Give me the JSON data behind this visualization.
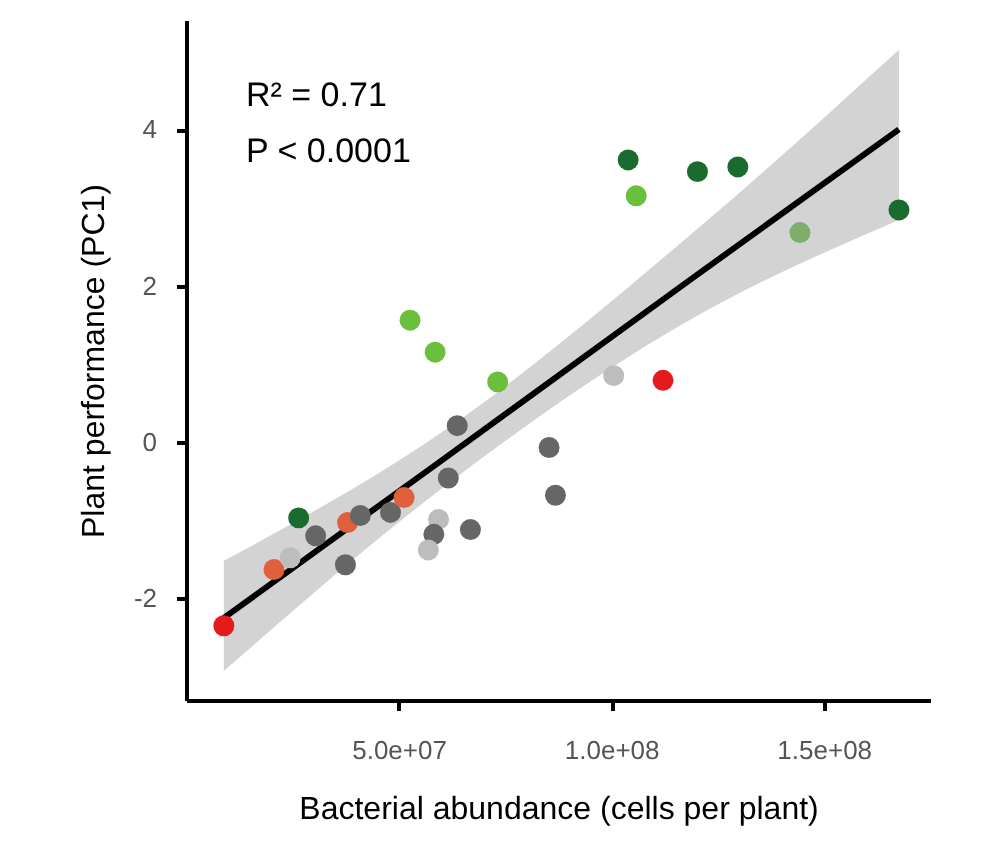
{
  "chart_data": {
    "type": "scatter",
    "xlabel": "Bacterial abundance (cells per plant)",
    "ylabel": "Plant performance (PC1)",
    "annotations": [
      "R² = 0.71",
      "P < 0.0001"
    ],
    "xlim": [
      0,
      175000000.0
    ],
    "xticks": [
      {
        "value": 50000000.0,
        "label": "5.0e+07"
      },
      {
        "value": 100000000.0,
        "label": "1.0e+08"
      },
      {
        "value": 150000000.0,
        "label": "1.5e+08"
      }
    ],
    "ylim": [
      -3.3,
      5.4
    ],
    "yticks": [
      -2,
      0,
      2,
      4
    ],
    "grid": false,
    "series": [
      {
        "type": "line",
        "color": "#000000",
        "x": [
          8900000.0,
          60000000.0,
          119700000.0,
          167700000.0
        ],
        "values": [
          -2.25,
          -0.24,
          2.12,
          4.0
        ],
        "lower": [
          -2.93,
          -0.6,
          1.6,
          2.84
        ],
        "upper": [
          -1.52,
          0.12,
          2.7,
          5.02
        ]
      },
      {
        "type": "scatter",
        "marker": "circle",
        "x": [
          8900000.0,
          20700000.0,
          24500000.0,
          26500000.0,
          30500000.0,
          38000000.0,
          37500000.0,
          41000000.0,
          48100000.0,
          51300000.0,
          52700000.0,
          58600000.0,
          61700000.0,
          63800000.0,
          59400000.0,
          58300000.0,
          57000000.0,
          66900000.0,
          73300000.0,
          85400000.0,
          86900000.0,
          104000000.0,
          105900000.0,
          120300000.0,
          129800000.0,
          100600000.0,
          112200000.0,
          144400000.0,
          167700000.0
        ],
        "values": [
          -2.35,
          -1.63,
          -1.48,
          -0.97,
          -1.2,
          -1.03,
          -1.57,
          -0.94,
          -0.9,
          -0.71,
          1.56,
          1.15,
          -0.46,
          0.21,
          -0.99,
          -1.18,
          -1.38,
          -1.12,
          0.77,
          -0.07,
          -0.68,
          3.61,
          3.15,
          3.46,
          3.52,
          0.85,
          0.79,
          2.68,
          2.97
        ],
        "colors": [
          "#e41a1c",
          "#e0603c",
          "#bdbdbd",
          "#1a6b2e",
          "#666666",
          "#e0603c",
          "#666666",
          "#666666",
          "#666666",
          "#e0603c",
          "#6abf3c",
          "#6abf3c",
          "#666666",
          "#666666",
          "#bdbdbd",
          "#666666",
          "#bdbdbd",
          "#666666",
          "#6abf3c",
          "#666666",
          "#666666",
          "#1a6b2e",
          "#6abf3c",
          "#1a6b2e",
          "#1a6b2e",
          "#bdbdbd",
          "#e41a1c",
          "#7fae6a",
          "#1a6b2e"
        ]
      }
    ]
  }
}
